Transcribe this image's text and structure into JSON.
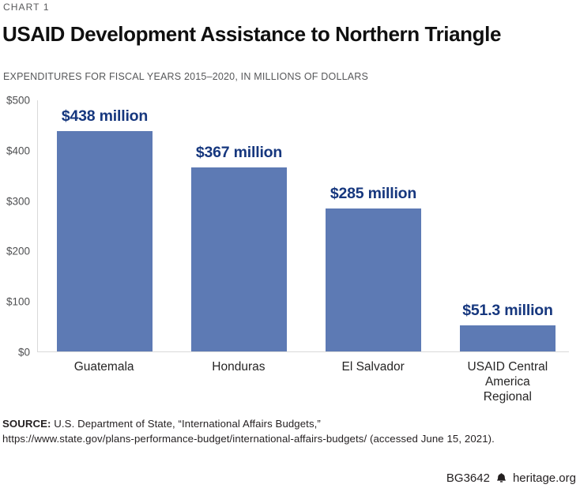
{
  "header": {
    "kicker": "CHART 1",
    "title": "USAID Development Assistance to Northern Triangle",
    "subtitle": "EXPENDITURES FOR FISCAL YEARS 2015–2020, IN MILLIONS OF DOLLARS"
  },
  "chart_data": {
    "type": "bar",
    "title": "USAID Development Assistance to Northern Triangle",
    "subtitle": "EXPENDITURES FOR FISCAL YEARS 2015–2020, IN MILLIONS OF DOLLARS",
    "categories": [
      "Guatemala",
      "Honduras",
      "El Salvador",
      "USAID Central America Regional"
    ],
    "values": [
      438,
      367,
      285,
      51.3
    ],
    "value_labels": [
      "$438 million",
      "$367 million",
      "$285 million",
      "$51.3 million"
    ],
    "xlabel": "",
    "ylabel": "",
    "ylim": [
      0,
      500
    ],
    "yticks": [
      0,
      100,
      200,
      300,
      400,
      500
    ],
    "ytick_labels_top_down": [
      "$500",
      "$400",
      "$300",
      "$200",
      "$100",
      "$0"
    ],
    "grid": false,
    "legend_position": "none",
    "bar_color": "#5d7ab4",
    "value_label_color": "#16377e",
    "axis_line_color": "#d9d9d9"
  },
  "footer": {
    "source_label": "SOURCE:",
    "source_text": " U.S. Department of State, “International Affairs Budgets,”",
    "source_line2": "https://www.state.gov/plans-performance-budget/international-affairs-budgets/ (accessed June 15, 2021).",
    "doc_id": "BG3642",
    "site": "heritage.org",
    "bell_icon": "liberty-bell-icon"
  }
}
